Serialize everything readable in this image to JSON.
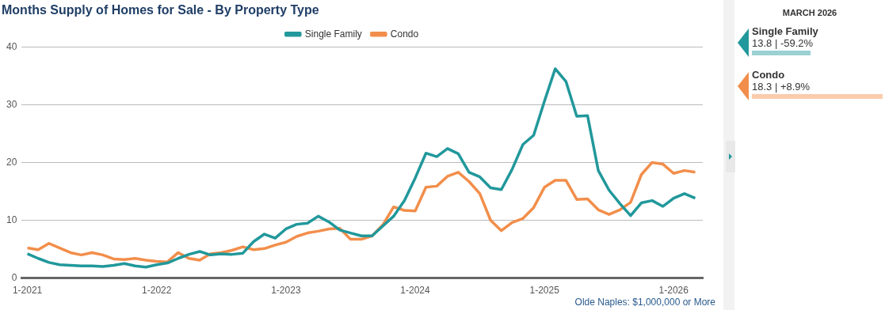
{
  "chart_data": {
    "type": "line",
    "title": "Months Supply of Homes for Sale - By Property Type",
    "x": [
      "2021-01",
      "2021-02",
      "2021-03",
      "2021-04",
      "2021-05",
      "2021-06",
      "2021-07",
      "2021-08",
      "2021-09",
      "2021-10",
      "2021-11",
      "2021-12",
      "2022-01",
      "2022-02",
      "2022-03",
      "2022-04",
      "2022-05",
      "2022-06",
      "2022-07",
      "2022-08",
      "2022-09",
      "2022-10",
      "2022-11",
      "2022-12",
      "2023-01",
      "2023-02",
      "2023-03",
      "2023-04",
      "2023-05",
      "2023-06",
      "2023-07",
      "2023-08",
      "2023-09",
      "2023-10",
      "2023-11",
      "2023-12",
      "2024-01",
      "2024-02",
      "2024-03",
      "2024-04",
      "2024-05",
      "2024-06",
      "2024-07",
      "2024-08",
      "2024-09",
      "2024-10",
      "2024-11",
      "2024-12",
      "2025-01",
      "2025-02",
      "2025-03",
      "2025-04",
      "2025-05",
      "2025-06",
      "2025-07",
      "2025-08",
      "2025-09",
      "2025-10",
      "2025-11",
      "2025-12",
      "2026-01",
      "2026-02",
      "2026-03"
    ],
    "series": [
      {
        "name": "Single Family",
        "color": "#21989b",
        "values": [
          4.2,
          3.4,
          2.7,
          2.3,
          2.2,
          2.1,
          2.1,
          2.0,
          2.2,
          2.5,
          2.1,
          1.9,
          2.3,
          2.6,
          3.4,
          4.1,
          4.6,
          4.0,
          4.2,
          4.1,
          4.3,
          6.3,
          7.6,
          6.9,
          8.5,
          9.3,
          9.5,
          10.7,
          9.7,
          8.3,
          7.8,
          7.3,
          7.3,
          9.0,
          10.7,
          13.4,
          17.3,
          21.6,
          21.0,
          22.4,
          21.5,
          18.3,
          17.5,
          15.6,
          15.3,
          18.8,
          23.1,
          24.7,
          30.6,
          36.2,
          34.0,
          28.0,
          28.1,
          18.6,
          15.2,
          12.9,
          10.8,
          13.0,
          13.4,
          12.4,
          13.8,
          14.6,
          13.8
        ]
      },
      {
        "name": "Condo",
        "color": "#f28e4b",
        "values": [
          5.2,
          4.9,
          6.0,
          5.2,
          4.4,
          4.0,
          4.4,
          4.0,
          3.3,
          3.2,
          3.4,
          3.1,
          2.9,
          2.8,
          4.4,
          3.4,
          3.1,
          4.2,
          4.4,
          4.8,
          5.4,
          4.9,
          5.1,
          5.7,
          6.2,
          7.2,
          7.8,
          8.1,
          8.5,
          8.6,
          6.7,
          6.7,
          7.3,
          9.2,
          12.3,
          11.7,
          11.6,
          15.7,
          15.9,
          17.6,
          18.3,
          16.7,
          14.6,
          10.0,
          8.2,
          9.6,
          10.3,
          12.2,
          15.7,
          16.9,
          16.9,
          13.6,
          13.7,
          11.8,
          11.0,
          11.8,
          13.1,
          17.9,
          20.0,
          19.7,
          18.1,
          18.6,
          18.3
        ]
      }
    ],
    "xlim": [
      "2020-12-15",
      "2026-03-22"
    ],
    "xticks": [
      {
        "value": "2021-01",
        "label": "1-2021"
      },
      {
        "value": "2022-01",
        "label": "1-2022"
      },
      {
        "value": "2023-01",
        "label": "1-2023"
      },
      {
        "value": "2024-01",
        "label": "1-2024"
      },
      {
        "value": "2025-01",
        "label": "1-2025"
      },
      {
        "value": "2026-01",
        "label": "1-2026"
      }
    ],
    "ylim": [
      0,
      40
    ],
    "yticks": [
      0,
      10,
      20,
      30,
      40
    ],
    "grid": "y",
    "legend": "top",
    "marker": "none",
    "line_style": "solid",
    "annotations": [
      "MARCH 2026",
      "13.8 | -59.2%",
      "18.3 | +8.9%",
      "Olde Naples: $1,000,000 or More"
    ]
  }
}
